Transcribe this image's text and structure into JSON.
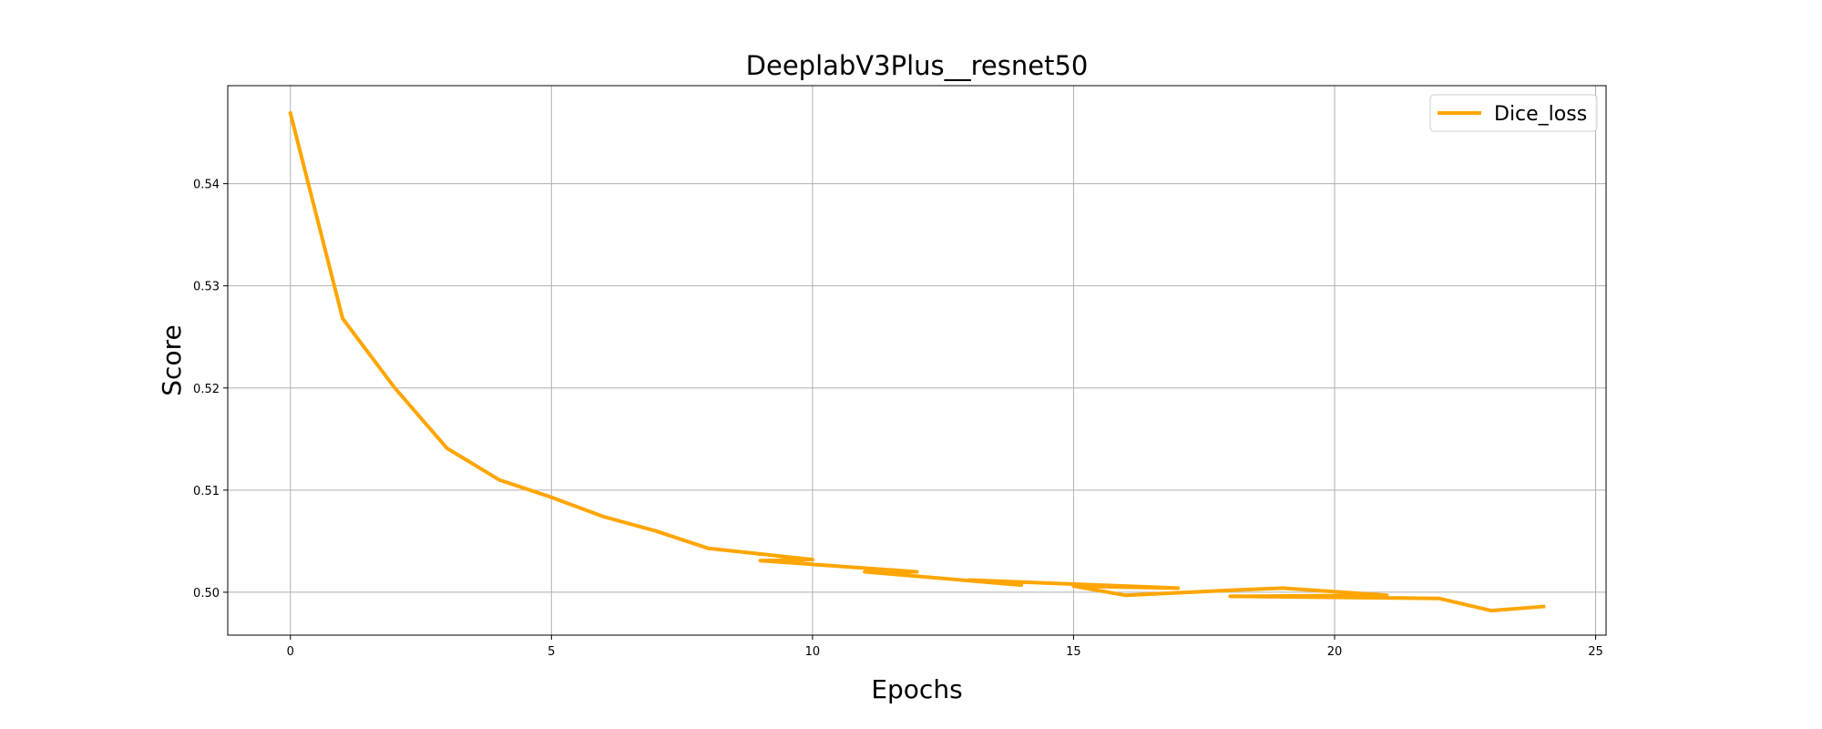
{
  "chart_data": {
    "type": "line",
    "title": "DeeplabV3Plus__resnet50",
    "xlabel": "Epochs",
    "ylabel": "Score",
    "xlim": [
      -1.2,
      25.2
    ],
    "ylim": [
      0.4958,
      0.5496
    ],
    "xticks": [
      0,
      5,
      10,
      15,
      20,
      25
    ],
    "yticks": [
      0.5,
      0.51,
      0.52,
      0.53,
      0.54
    ],
    "ytick_labels": [
      "0.50",
      "0.51",
      "0.52",
      "0.53",
      "0.54"
    ],
    "grid": true,
    "legend_position": "top-right",
    "series": [
      {
        "name": "Dice_loss",
        "color": "#ffa500",
        "x": [
          0,
          1,
          2,
          3,
          4,
          5,
          6,
          7,
          8,
          10,
          9,
          12,
          11,
          14,
          13,
          17,
          15,
          16,
          18,
          19,
          21,
          18,
          22,
          23,
          24
        ],
        "y": [
          0.5469,
          0.5268,
          0.52,
          0.5141,
          0.511,
          0.5093,
          0.5074,
          0.506,
          0.5043,
          0.5032,
          0.5031,
          0.502,
          0.502,
          0.5007,
          0.5012,
          0.5004,
          0.5006,
          0.4997,
          0.5002,
          0.5004,
          0.4997,
          0.4996,
          0.4994,
          0.4982,
          0.4986
        ]
      }
    ]
  }
}
